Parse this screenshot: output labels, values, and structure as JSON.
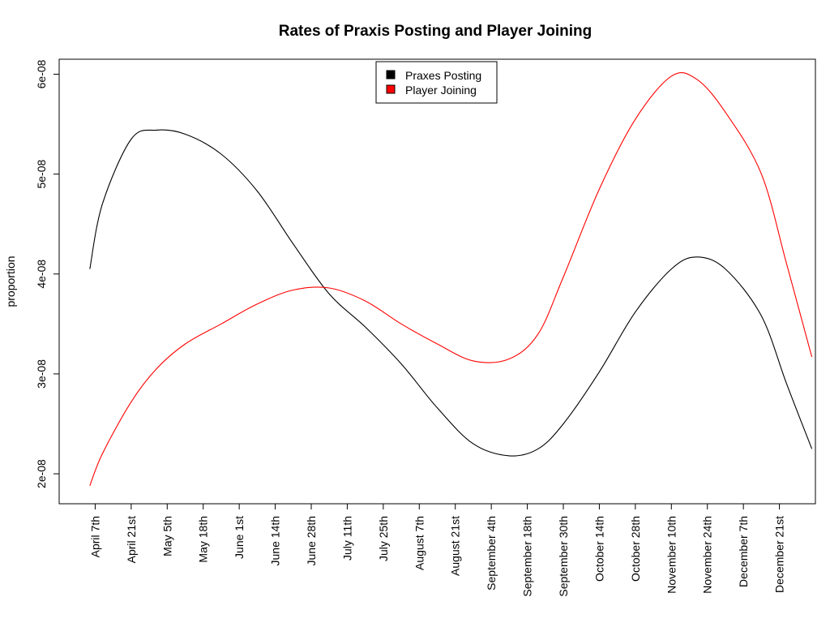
{
  "chart_data": {
    "type": "line",
    "title": "Rates of Praxis Posting and Player Joining",
    "xlabel": "",
    "ylabel": "proportion",
    "x_tick_labels": [
      "April 7th",
      "April 21st",
      "May 5th",
      "May 18th",
      "June 1st",
      "June 14th",
      "June 28th",
      "July 11th",
      "July 25th",
      "August 7th",
      "August 21st",
      "September 4th",
      "September 18th",
      "September 30th",
      "October 14th",
      "October 28th",
      "November 10th",
      "November 24th",
      "December 7th",
      "December 21st"
    ],
    "y_tick_labels": [
      "2e-08",
      "3e-08",
      "4e-08",
      "5e-08",
      "6e-08"
    ],
    "y_ticks": [
      2e-08,
      3e-08,
      4e-08,
      5e-08,
      6e-08
    ],
    "ylim": [
      1.7e-08,
      6.15e-08
    ],
    "xlim": [
      -1.0,
      20.0
    ],
    "x": [
      -0.15,
      0.2,
      1.0,
      1.7,
      2.5,
      3.5,
      4.5,
      5.5,
      6.5,
      7.5,
      8.5,
      9.5,
      10.5,
      11.5,
      12.3,
      13.0,
      14.0,
      15.0,
      16.0,
      16.7,
      17.5,
      18.5,
      19.2,
      19.9
    ],
    "series": [
      {
        "name": "Praxes Posting",
        "color": "#000000",
        "values": [
          4.05e-08,
          4.7e-08,
          5.35e-08,
          5.44e-08,
          5.4e-08,
          5.2e-08,
          4.83e-08,
          4.3e-08,
          3.8e-08,
          3.47e-08,
          3.1e-08,
          2.66e-08,
          2.3e-08,
          2.18e-08,
          2.25e-08,
          2.5e-08,
          3.02e-08,
          3.62e-08,
          4.05e-08,
          4.17e-08,
          4.05e-08,
          3.58e-08,
          2.9e-08,
          2.25e-08
        ]
      },
      {
        "name": "Player Joining",
        "color": "#ff0000",
        "values": [
          1.88e-08,
          2.2e-08,
          2.72e-08,
          3.05e-08,
          3.3e-08,
          3.5e-08,
          3.7e-08,
          3.84e-08,
          3.86e-08,
          3.73e-08,
          3.5e-08,
          3.3e-08,
          3.13e-08,
          3.15e-08,
          3.4e-08,
          3.97e-08,
          4.85e-08,
          5.55e-08,
          5.98e-08,
          5.95e-08,
          5.62e-08,
          5e-08,
          4.1e-08,
          3.17e-08
        ]
      }
    ],
    "legend": {
      "placement": "top-center",
      "entries": [
        {
          "label": "Praxes Posting",
          "color": "#000000"
        },
        {
          "label": "Player Joining",
          "color": "#ff0000"
        }
      ]
    },
    "grid": false
  }
}
